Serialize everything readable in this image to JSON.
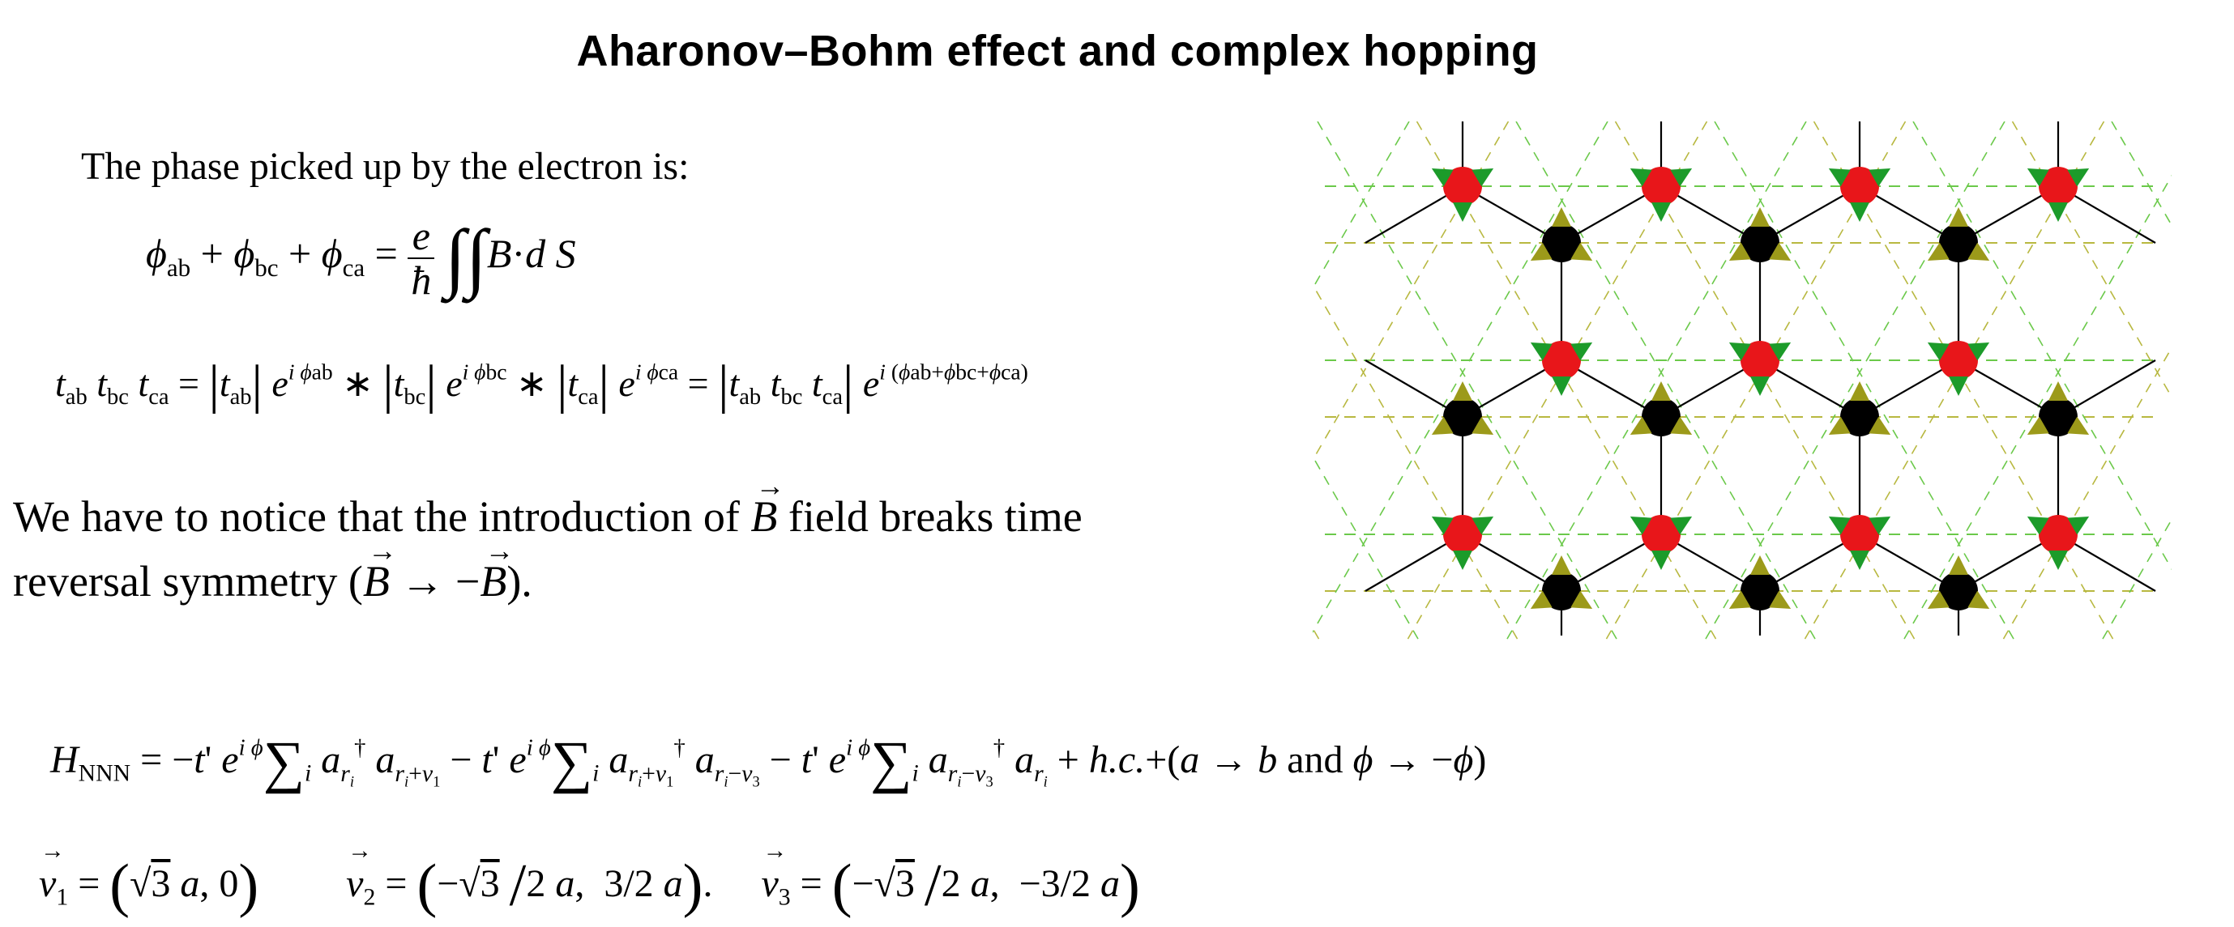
{
  "title": "Aharonov–Bohm  effect and complex hopping",
  "intro": "The phase picked up by the electron is:",
  "notice": {
    "line1_pre": "We have to notice that the introduction of ",
    "B": "B",
    "line1_post": " field breaks time",
    "line2_pre": "reversal symmetry (",
    "arrow": " → −",
    "line2_post": ")."
  },
  "colors": {
    "site_a": "#e8161a",
    "site_b": "#000000",
    "arrow_green": "#1c9b2a",
    "arrow_olive": "#9c9a1a",
    "nnn_green": "#6bc94a",
    "nnn_olive": "#b8b840",
    "bond": "#000000"
  }
}
